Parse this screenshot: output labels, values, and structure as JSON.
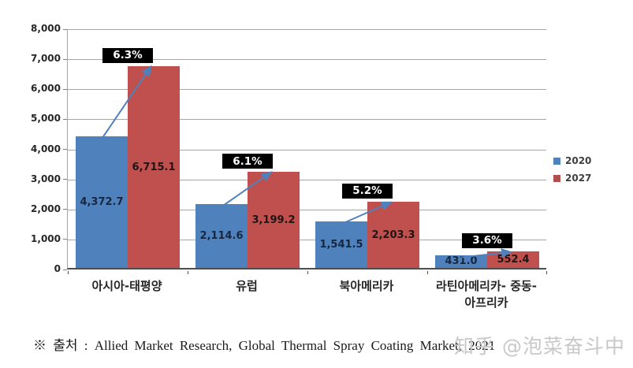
{
  "chart_data": {
    "type": "bar",
    "title": "",
    "xlabel": "",
    "ylabel": "",
    "categories": [
      "아시아-태평양",
      "유럽",
      "북아메리카",
      "라틴아메리카- 중동-\n아프리카"
    ],
    "series": [
      {
        "name": "2020",
        "color": "#4f81bd",
        "values": [
          4372.7,
          2114.6,
          1541.5,
          431.0
        ]
      },
      {
        "name": "2027",
        "color": "#c0504d",
        "values": [
          6715.1,
          3199.2,
          2203.3,
          552.4
        ]
      }
    ],
    "value_labels": [
      [
        "4,372.7",
        "2,114.6",
        "1,541.5",
        "431.0"
      ],
      [
        "6,715.1",
        "3,199.2",
        "2,203.3",
        "552.4"
      ]
    ],
    "growth_labels": [
      "6.3%",
      "6.1%",
      "5.2%",
      "3.6%"
    ],
    "ylim": [
      0,
      8000
    ],
    "y_ticks": [
      "0",
      "1,000",
      "2,000",
      "3,000",
      "4,000",
      "5,000",
      "6,000",
      "7,000",
      "8,000"
    ],
    "grid": true,
    "legend_position": "right",
    "arrow_color": "#4f81bd",
    "value_label_color_2020": "#16273f",
    "value_label_color_2027": "#221414"
  },
  "legend": {
    "items": [
      {
        "label": "2020",
        "color": "#4f81bd"
      },
      {
        "label": "2027",
        "color": "#b0504d"
      }
    ]
  },
  "source_note": "※ 출처 : Allied Market Research, Global Thermal Spray Coating Market, 2021",
  "watermark": "知乎 @泡菜奋斗中",
  "colors": {
    "background": "#ffffff",
    "gridline": "#a6a6a6",
    "axis": "#4d4d4d",
    "growth_badge_bg": "#000000",
    "growth_badge_text": "#ffffff",
    "watermark_text": "#c8c8c8"
  }
}
